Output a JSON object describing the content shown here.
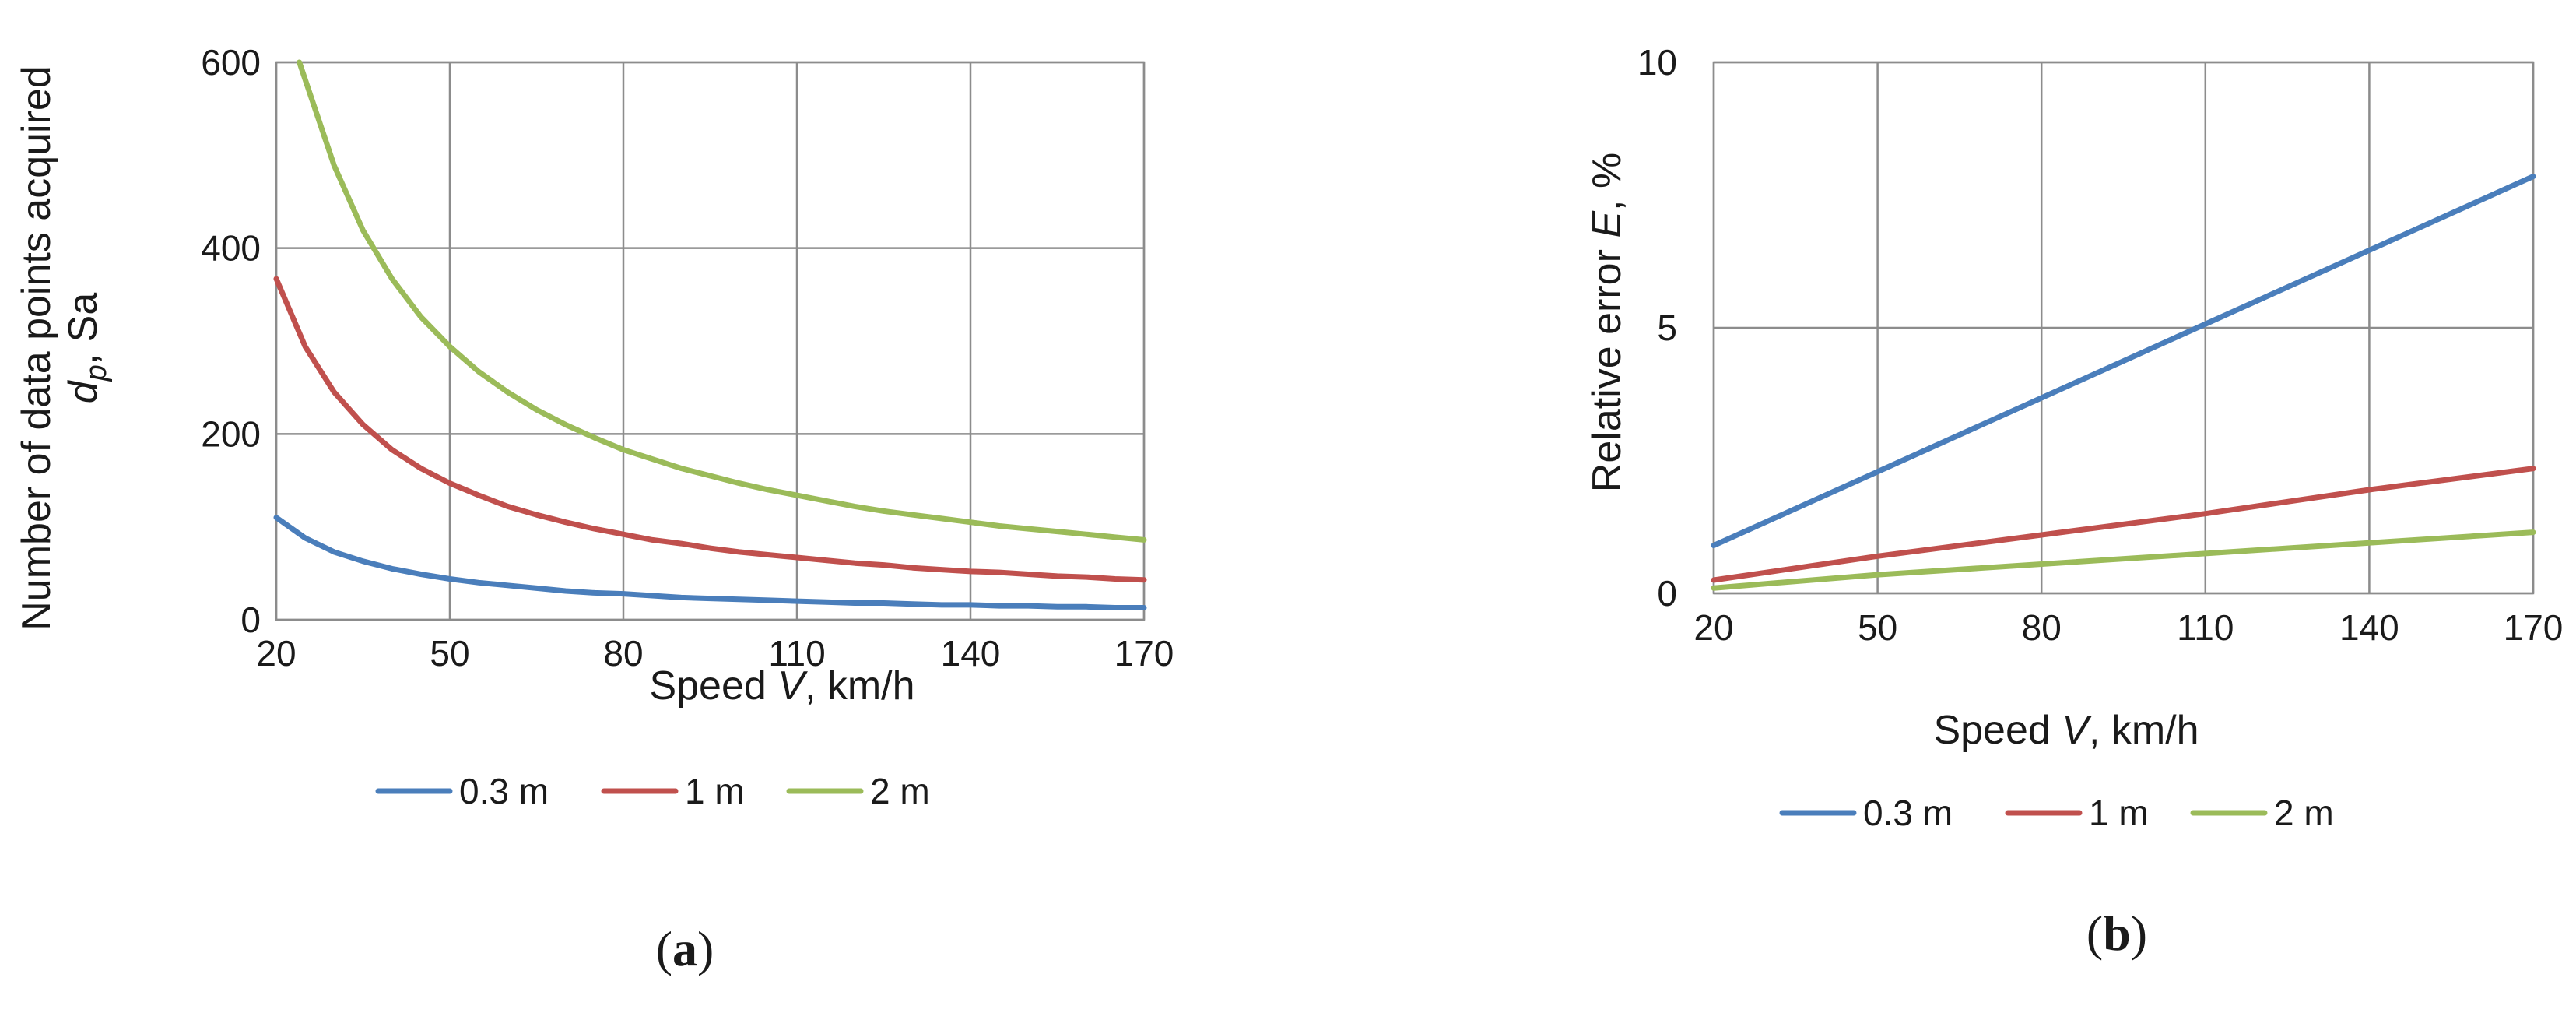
{
  "colors": {
    "s1": "#4a7ebb",
    "s2": "#c0504d",
    "s3": "#9bbb59"
  },
  "chart_data": [
    {
      "type": "line",
      "panel_prefix": "(",
      "panel_letter": "a",
      "panel_suffix": ")",
      "xlabel_pre": "Speed ",
      "xlabel_var": "V",
      "xlabel_post": ", km/h",
      "ylabel_line1": "Number of data points acquired",
      "ylabel_var": "d",
      "ylabel_sub": "p",
      "ylabel_post": ", Sa",
      "xlim": [
        20,
        170
      ],
      "ylim": [
        0,
        600
      ],
      "x_ticks": [
        20,
        50,
        80,
        110,
        140,
        170
      ],
      "y_ticks": [
        0,
        200,
        400,
        600
      ],
      "grid": true,
      "legend_position": "bottom",
      "series": [
        {
          "name": "0.3 m",
          "color": "s1",
          "x": [
            20,
            25,
            30,
            35,
            40,
            45,
            50,
            55,
            60,
            65,
            70,
            75,
            80,
            85,
            90,
            95,
            100,
            105,
            110,
            115,
            120,
            125,
            130,
            135,
            140,
            145,
            150,
            155,
            160,
            165,
            170
          ],
          "y": [
            110,
            88,
            73,
            63,
            55,
            49,
            44,
            40,
            37,
            34,
            31,
            29,
            28,
            26,
            24,
            23,
            22,
            21,
            20,
            19,
            18,
            18,
            17,
            16,
            16,
            15,
            15,
            14,
            14,
            13,
            13
          ]
        },
        {
          "name": "1 m",
          "color": "s2",
          "x": [
            20,
            25,
            30,
            35,
            40,
            45,
            50,
            55,
            60,
            65,
            70,
            75,
            80,
            85,
            90,
            95,
            100,
            105,
            110,
            115,
            120,
            125,
            130,
            135,
            140,
            145,
            150,
            155,
            160,
            165,
            170
          ],
          "y": [
            367,
            294,
            245,
            210,
            183,
            163,
            147,
            134,
            122,
            113,
            105,
            98,
            92,
            86,
            82,
            77,
            73,
            70,
            67,
            64,
            61,
            59,
            56,
            54,
            52,
            51,
            49,
            47,
            46,
            44,
            43
          ]
        },
        {
          "name": "2 m",
          "color": "s3",
          "x": [
            24,
            30,
            35,
            40,
            45,
            50,
            55,
            60,
            65,
            70,
            75,
            80,
            85,
            90,
            95,
            100,
            105,
            110,
            115,
            120,
            125,
            130,
            135,
            140,
            145,
            150,
            155,
            160,
            165,
            170
          ],
          "y": [
            600,
            489,
            419,
            367,
            326,
            294,
            267,
            245,
            226,
            210,
            196,
            183,
            173,
            163,
            155,
            147,
            140,
            134,
            128,
            122,
            117,
            113,
            109,
            105,
            101,
            98,
            95,
            92,
            89,
            86
          ]
        }
      ]
    },
    {
      "type": "line",
      "panel_prefix": "(",
      "panel_letter": "b",
      "panel_suffix": ")",
      "xlabel_pre": "Speed ",
      "xlabel_var": "V",
      "xlabel_post": ", km/h",
      "ylabel_pre": "Relative error ",
      "ylabel_var": "E",
      "ylabel_post": ", %",
      "xlim": [
        20,
        170
      ],
      "ylim": [
        0,
        10
      ],
      "x_ticks": [
        20,
        50,
        80,
        110,
        140,
        170
      ],
      "y_ticks": [
        0,
        5,
        10
      ],
      "grid": true,
      "legend_position": "bottom",
      "series": [
        {
          "name": "0.3 m",
          "color": "s1",
          "x": [
            20,
            170
          ],
          "y": [
            0.9,
            7.85
          ]
        },
        {
          "name": "1 m",
          "color": "s2",
          "x": [
            20,
            50,
            80,
            110,
            140,
            170
          ],
          "y": [
            0.25,
            0.7,
            1.1,
            1.5,
            1.95,
            2.35
          ]
        },
        {
          "name": "2 m",
          "color": "s3",
          "x": [
            20,
            50,
            80,
            110,
            140,
            170
          ],
          "y": [
            0.1,
            0.35,
            0.55,
            0.75,
            0.95,
            1.15
          ]
        }
      ]
    }
  ]
}
